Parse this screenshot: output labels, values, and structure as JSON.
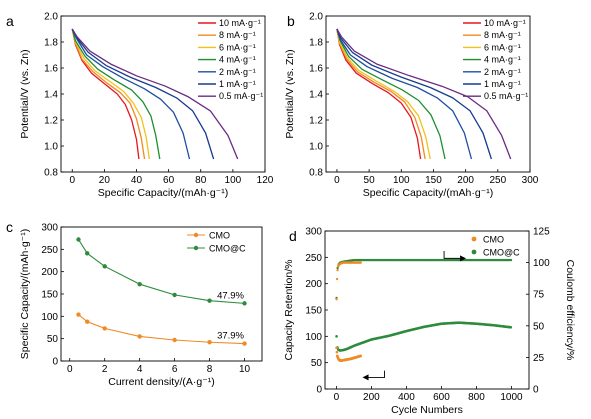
{
  "chart_data": [
    {
      "panel_label": "a",
      "type": "line",
      "title": "",
      "xlabel": "Specific Capacity/(mAh·g⁻¹)",
      "ylabel": "Potential/V (vs. Zn)",
      "xlim": [
        -7,
        120
      ],
      "ylim": [
        0.8,
        2.0
      ],
      "xticks": [
        0,
        20,
        40,
        60,
        80,
        100,
        120
      ],
      "yticks": [
        0.8,
        1.0,
        1.2,
        1.4,
        1.6,
        1.8,
        2.0
      ],
      "legend_position": "top-right",
      "series": [
        {
          "name": "10 mA·g⁻¹",
          "color": "#e8151f",
          "points": [
            [
              0,
              1.9
            ],
            [
              2,
              1.78
            ],
            [
              6,
              1.66
            ],
            [
              12,
              1.56
            ],
            [
              20,
              1.48
            ],
            [
              28,
              1.4
            ],
            [
              33,
              1.32
            ],
            [
              37,
              1.2
            ],
            [
              40,
              1.05
            ],
            [
              41.5,
              0.9
            ]
          ]
        },
        {
          "name": "8 mA·g⁻¹",
          "color": "#f08a24",
          "points": [
            [
              0,
              1.9
            ],
            [
              2,
              1.79
            ],
            [
              6,
              1.67
            ],
            [
              13,
              1.57
            ],
            [
              21,
              1.49
            ],
            [
              30,
              1.41
            ],
            [
              36,
              1.33
            ],
            [
              40,
              1.21
            ],
            [
              43,
              1.06
            ],
            [
              45,
              0.9
            ]
          ]
        },
        {
          "name": "6 mA·g⁻¹",
          "color": "#f1c21b",
          "points": [
            [
              0,
              1.9
            ],
            [
              2,
              1.8
            ],
            [
              7,
              1.68
            ],
            [
              14,
              1.58
            ],
            [
              23,
              1.5
            ],
            [
              32,
              1.42
            ],
            [
              38,
              1.33
            ],
            [
              43,
              1.22
            ],
            [
              46,
              1.07
            ],
            [
              48,
              0.9
            ]
          ]
        },
        {
          "name": "4 mA·g⁻¹",
          "color": "#1d8f2f",
          "points": [
            [
              0,
              1.9
            ],
            [
              2,
              1.81
            ],
            [
              8,
              1.69
            ],
            [
              16,
              1.59
            ],
            [
              26,
              1.51
            ],
            [
              37,
              1.43
            ],
            [
              44,
              1.34
            ],
            [
              49,
              1.23
            ],
            [
              52,
              1.08
            ],
            [
              54.5,
              0.9
            ]
          ]
        },
        {
          "name": "2 mA·g⁻¹",
          "color": "#1f4ea2",
          "points": [
            [
              0,
              1.9
            ],
            [
              3,
              1.82
            ],
            [
              9,
              1.7
            ],
            [
              19,
              1.61
            ],
            [
              32,
              1.52
            ],
            [
              45,
              1.44
            ],
            [
              55,
              1.36
            ],
            [
              63,
              1.26
            ],
            [
              69,
              1.1
            ],
            [
              73,
              0.9
            ]
          ]
        },
        {
          "name": "1 mA·g⁻¹",
          "color": "#163c8e",
          "points": [
            [
              0,
              1.9
            ],
            [
              3,
              1.83
            ],
            [
              10,
              1.72
            ],
            [
              21,
              1.62
            ],
            [
              36,
              1.53
            ],
            [
              52,
              1.45
            ],
            [
              65,
              1.37
            ],
            [
              75,
              1.27
            ],
            [
              83,
              1.1
            ],
            [
              88,
              0.9
            ]
          ]
        },
        {
          "name": "0.5 mA·g⁻¹",
          "color": "#6a2b84",
          "points": [
            [
              0,
              1.9
            ],
            [
              3,
              1.84
            ],
            [
              11,
              1.73
            ],
            [
              24,
              1.63
            ],
            [
              40,
              1.54
            ],
            [
              58,
              1.46
            ],
            [
              72,
              1.38
            ],
            [
              86,
              1.27
            ],
            [
              97,
              1.08
            ],
            [
              103,
              0.9
            ]
          ]
        }
      ]
    },
    {
      "panel_label": "b",
      "type": "line",
      "title": "",
      "xlabel": "Specific Capacity/(mAh·g⁻¹)",
      "ylabel": "Potential/V (vs. Zn)",
      "xlim": [
        -17,
        300
      ],
      "ylim": [
        0.8,
        2.0
      ],
      "xticks": [
        0,
        50,
        100,
        150,
        200,
        250,
        300
      ],
      "yticks": [
        0.8,
        1.0,
        1.2,
        1.4,
        1.6,
        1.8,
        2.0
      ],
      "legend_position": "top-right",
      "series": [
        {
          "name": "10 mA·g⁻¹",
          "color": "#e8151f",
          "points": [
            [
              0,
              1.9
            ],
            [
              4,
              1.78
            ],
            [
              14,
              1.66
            ],
            [
              30,
              1.56
            ],
            [
              55,
              1.48
            ],
            [
              80,
              1.41
            ],
            [
              100,
              1.33
            ],
            [
              115,
              1.22
            ],
            [
              125,
              1.06
            ],
            [
              130,
              0.9
            ]
          ]
        },
        {
          "name": "8 mA·g⁻¹",
          "color": "#f08a24",
          "points": [
            [
              0,
              1.9
            ],
            [
              4,
              1.79
            ],
            [
              15,
              1.67
            ],
            [
              32,
              1.57
            ],
            [
              58,
              1.49
            ],
            [
              84,
              1.42
            ],
            [
              105,
              1.34
            ],
            [
              121,
              1.22
            ],
            [
              131,
              1.07
            ],
            [
              137,
              0.9
            ]
          ]
        },
        {
          "name": "6 mA·g⁻¹",
          "color": "#f1c21b",
          "points": [
            [
              0,
              1.9
            ],
            [
              4,
              1.8
            ],
            [
              16,
              1.68
            ],
            [
              34,
              1.58
            ],
            [
              61,
              1.5
            ],
            [
              89,
              1.42
            ],
            [
              110,
              1.34
            ],
            [
              127,
              1.23
            ],
            [
              138,
              1.07
            ],
            [
              145,
              0.9
            ]
          ]
        },
        {
          "name": "4 mA·g⁻¹",
          "color": "#1d8f2f",
          "points": [
            [
              0,
              1.9
            ],
            [
              5,
              1.81
            ],
            [
              18,
              1.69
            ],
            [
              39,
              1.59
            ],
            [
              70,
              1.51
            ],
            [
              102,
              1.43
            ],
            [
              127,
              1.35
            ],
            [
              146,
              1.24
            ],
            [
              160,
              1.08
            ],
            [
              168,
              0.9
            ]
          ]
        },
        {
          "name": "2 mA·g⁻¹",
          "color": "#1f4ea2",
          "points": [
            [
              0,
              1.9
            ],
            [
              5,
              1.82
            ],
            [
              21,
              1.7
            ],
            [
              47,
              1.61
            ],
            [
              86,
              1.52
            ],
            [
              125,
              1.45
            ],
            [
              156,
              1.37
            ],
            [
              180,
              1.27
            ],
            [
              198,
              1.1
            ],
            [
              209,
              0.9
            ]
          ]
        },
        {
          "name": "1 mA·g⁻¹",
          "color": "#163c8e",
          "points": [
            [
              0,
              1.9
            ],
            [
              6,
              1.83
            ],
            [
              24,
              1.72
            ],
            [
              55,
              1.62
            ],
            [
              100,
              1.53
            ],
            [
              145,
              1.45
            ],
            [
              180,
              1.37
            ],
            [
              207,
              1.27
            ],
            [
              227,
              1.1
            ],
            [
              240,
              0.9
            ]
          ]
        },
        {
          "name": "0.5 mA·g⁻¹",
          "color": "#6a2b84",
          "points": [
            [
              0,
              1.9
            ],
            [
              7,
              1.84
            ],
            [
              27,
              1.73
            ],
            [
              62,
              1.63
            ],
            [
              113,
              1.54
            ],
            [
              163,
              1.46
            ],
            [
              203,
              1.38
            ],
            [
              233,
              1.27
            ],
            [
              256,
              1.08
            ],
            [
              270,
              0.9
            ]
          ]
        }
      ]
    },
    {
      "panel_label": "c",
      "type": "line",
      "title": "",
      "xlabel": "Current density/(A·g⁻¹)",
      "ylabel": "Specific Capacity/(mAh·g⁻¹)",
      "xlim": [
        -0.5,
        11
      ],
      "ylim": [
        0,
        300
      ],
      "xticks": [
        0,
        2,
        4,
        6,
        8,
        10
      ],
      "yticks": [
        0,
        50,
        100,
        150,
        200,
        250,
        300
      ],
      "legend_position": "top-right",
      "series": [
        {
          "name": "CMO",
          "color": "#f08a24",
          "x": [
            0.5,
            1,
            2,
            4,
            6,
            8,
            10
          ],
          "y": [
            104,
            88,
            73,
            55,
            47,
            42,
            39
          ]
        },
        {
          "name": "CMO@C",
          "color": "#2e8b3d",
          "x": [
            0.5,
            1,
            2,
            4,
            6,
            8,
            10
          ],
          "y": [
            272,
            241,
            212,
            172,
            148,
            135,
            129
          ]
        }
      ],
      "annotations": [
        {
          "text": "47.9%",
          "x": 9.2,
          "y": 140
        },
        {
          "text": "37.9%",
          "x": 9.2,
          "y": 50
        }
      ]
    },
    {
      "panel_label": "d",
      "type": "scatter",
      "title": "",
      "xlabel": "Cycle Numbers",
      "ylabel": "Capacity Retention/%",
      "y2label": "Coulomb efficiency/%",
      "xlim": [
        -65,
        1100
      ],
      "ylim": [
        0,
        300
      ],
      "y2lim": [
        0,
        125
      ],
      "xticks": [
        0,
        200,
        400,
        600,
        800,
        1000
      ],
      "yticks": [
        0,
        50,
        100,
        150,
        200,
        250,
        300
      ],
      "y2ticks": [
        0,
        25,
        50,
        75,
        100,
        125
      ],
      "legend_position": "top-right",
      "series": [
        {
          "name": "CMO",
          "color": "#f08a24"
        },
        {
          "name": "CMO@C",
          "color": "#2e8b3d"
        }
      ],
      "retention_cmo": {
        "x": [
          1,
          3,
          5,
          8,
          12,
          20,
          30,
          45,
          60,
          80,
          100,
          120,
          140
        ],
        "y": [
          78,
          70,
          63,
          60,
          57,
          54,
          54,
          55,
          56,
          57,
          59,
          61,
          63
        ]
      },
      "retention_cmoc": {
        "x": [
          1,
          5,
          10,
          20,
          40,
          60,
          100,
          150,
          200,
          300,
          400,
          500,
          600,
          700,
          800,
          900,
          1000
        ],
        "y": [
          100,
          80,
          75,
          73,
          74,
          76,
          82,
          88,
          94,
          101,
          110,
          118,
          124,
          126,
          124,
          121,
          117
        ]
      },
      "coulomb_cmo": {
        "x": [
          1,
          3,
          6,
          10,
          20,
          40,
          60,
          80,
          100,
          120,
          140
        ],
        "y2": [
          71,
          84,
          93,
          97,
          99,
          100,
          100,
          100,
          100,
          100,
          100
        ]
      },
      "coulomb_cmoc": {
        "x": [
          1,
          3,
          6,
          10,
          20,
          50,
          100,
          200,
          400,
          600,
          800,
          1000
        ],
        "y2": [
          72,
          86,
          95,
          98,
          100,
          101,
          102,
          102,
          102,
          102,
          102,
          102
        ]
      }
    }
  ]
}
